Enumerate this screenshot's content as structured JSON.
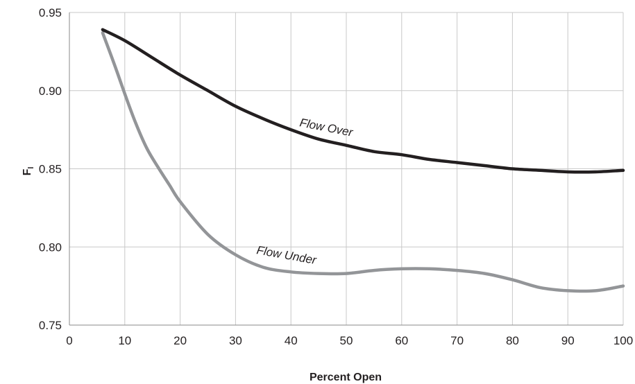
{
  "chart_data": {
    "type": "line",
    "xlabel": "Percent Open",
    "ylabel": "F",
    "ylabel_subscript": "l",
    "xlim": [
      0,
      100
    ],
    "ylim": [
      0.75,
      0.95
    ],
    "xticks": [
      "0",
      "10",
      "20",
      "30",
      "40",
      "50",
      "60",
      "70",
      "80",
      "90",
      "100"
    ],
    "yticks": [
      "0.75",
      "0.80",
      "0.85",
      "0.90",
      "0.95"
    ],
    "grid": true,
    "series": [
      {
        "name": "Flow Over",
        "color": "#231f20",
        "x": [
          6,
          10,
          15,
          20,
          25,
          30,
          35,
          40,
          45,
          50,
          55,
          60,
          65,
          70,
          75,
          80,
          85,
          90,
          95,
          100
        ],
        "y": [
          0.939,
          0.932,
          0.921,
          0.91,
          0.9,
          0.89,
          0.882,
          0.875,
          0.869,
          0.865,
          0.861,
          0.859,
          0.856,
          0.854,
          0.852,
          0.85,
          0.849,
          0.848,
          0.848,
          0.849
        ]
      },
      {
        "name": "Flow Under",
        "color": "#939598",
        "x": [
          6,
          8,
          10,
          12,
          14,
          16,
          18,
          20,
          25,
          30,
          35,
          40,
          45,
          50,
          55,
          60,
          65,
          70,
          75,
          80,
          85,
          90,
          95,
          100
        ],
        "y": [
          0.937,
          0.918,
          0.898,
          0.879,
          0.863,
          0.851,
          0.84,
          0.829,
          0.808,
          0.795,
          0.787,
          0.784,
          0.783,
          0.783,
          0.785,
          0.786,
          0.786,
          0.785,
          0.783,
          0.779,
          0.774,
          0.772,
          0.772,
          0.775
        ]
      }
    ],
    "annotations": [
      {
        "text": "Flow Over",
        "series": 0
      },
      {
        "text": "Flow Under",
        "series": 1
      }
    ]
  }
}
